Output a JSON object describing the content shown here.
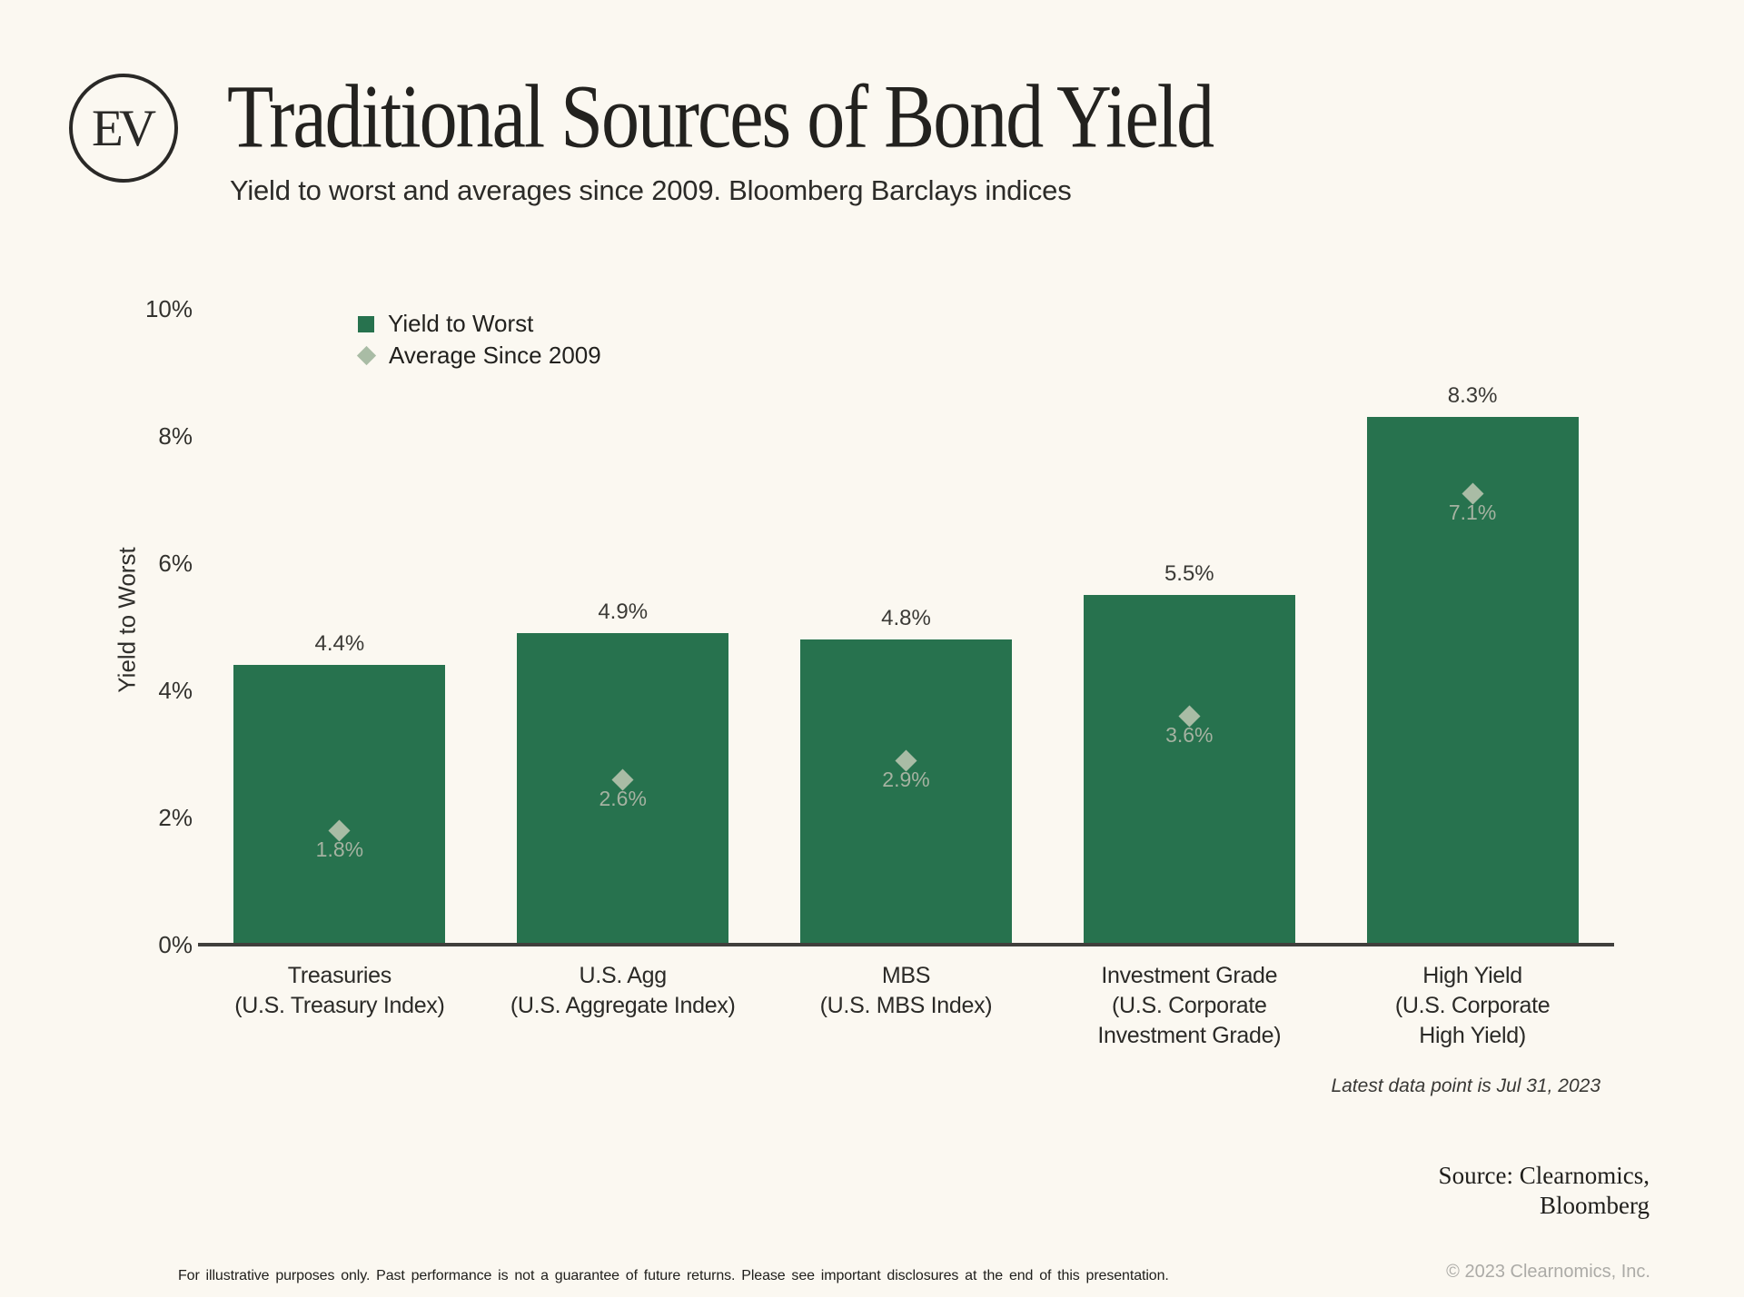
{
  "colors": {
    "background": "#FBF8F1",
    "bar_green": "#27724E",
    "sage_diamond": "#A9BCA5",
    "axis": "#403F3C"
  },
  "header": {
    "logo_text": "EV",
    "title": "Traditional Sources of Bond Yield",
    "subtitle": "Yield to worst and averages since 2009. Bloomberg Barclays indices"
  },
  "chart_data": {
    "type": "bar",
    "title": "Traditional Sources of Bond Yield",
    "xlabel": "",
    "ylabel": "Yield to Worst",
    "ylim": [
      0,
      10
    ],
    "grid": false,
    "legend_position": "top-left-inside",
    "yticks": [
      {
        "label": "0%",
        "value": 0
      },
      {
        "label": "2%",
        "value": 2
      },
      {
        "label": "4%",
        "value": 4
      },
      {
        "label": "6%",
        "value": 6
      },
      {
        "label": "8%",
        "value": 8
      },
      {
        "label": "10%",
        "value": 10
      }
    ],
    "legend": [
      {
        "label": "Yield to Worst",
        "marker": "square",
        "color": "#27724E"
      },
      {
        "label": "Average Since 2009",
        "marker": "diamond",
        "color": "#A9BCA5"
      }
    ],
    "categories": [
      {
        "lines": [
          "Treasuries",
          "(U.S. Treasury Index)"
        ]
      },
      {
        "lines": [
          "U.S. Agg",
          "(U.S. Aggregate Index)"
        ]
      },
      {
        "lines": [
          "MBS",
          "(U.S. MBS Index)"
        ]
      },
      {
        "lines": [
          "Investment Grade",
          "(U.S. Corporate",
          "Investment Grade)"
        ]
      },
      {
        "lines": [
          "High Yield",
          "(U.S. Corporate",
          "High Yield)"
        ]
      }
    ],
    "series": [
      {
        "name": "Yield to Worst",
        "type": "bar",
        "color": "#27724E",
        "values": [
          4.4,
          4.9,
          4.8,
          5.5,
          8.3
        ],
        "labels": [
          "4.4%",
          "4.9%",
          "4.8%",
          "5.5%",
          "8.3%"
        ]
      },
      {
        "name": "Average Since 2009",
        "type": "point",
        "marker": "diamond",
        "color": "#A9BCA5",
        "values": [
          1.8,
          2.6,
          2.9,
          3.6,
          7.1
        ],
        "labels": [
          "1.8%",
          "2.6%",
          "2.9%",
          "3.6%",
          "7.1%"
        ]
      }
    ]
  },
  "footer": {
    "latest_note": "Latest data point is Jul 31, 2023",
    "source_line1": "Source: Clearnomics,",
    "source_line2": "Bloomberg",
    "copyright": "© 2023 Clearnomics, Inc.",
    "disclaimer": "For illustrative purposes only. Past performance is not a guarantee of future returns. Please see important disclosures at the end of this presentation."
  }
}
